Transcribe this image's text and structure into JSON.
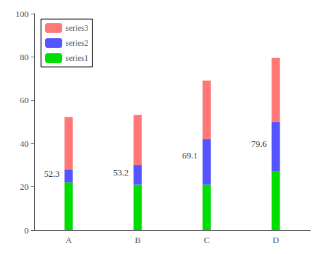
{
  "chart_data": {
    "type": "bar",
    "stacked": true,
    "categories": [
      "A",
      "B",
      "C",
      "D"
    ],
    "series": [
      {
        "name": "series1",
        "color": "#00dd00",
        "values": [
          22,
          21,
          21,
          27
        ]
      },
      {
        "name": "series2",
        "color": "#5555ff",
        "values": [
          6,
          9,
          21,
          23
        ]
      },
      {
        "name": "series3",
        "color": "#ff7777",
        "values": [
          24.3,
          23.2,
          27.1,
          29.6
        ]
      }
    ],
    "annotations": [
      {
        "text": "52.3",
        "x": "A",
        "y": 26.15
      },
      {
        "text": "53.2",
        "x": "B",
        "y": 26.6
      },
      {
        "text": "69.1",
        "x": "C",
        "y": 34.55
      },
      {
        "text": "79.6",
        "x": "D",
        "y": 39.8
      }
    ],
    "ylim": [
      0,
      100
    ],
    "yticks": [
      0,
      20,
      40,
      60,
      80,
      100
    ],
    "grid": false,
    "legend": "upper left"
  }
}
